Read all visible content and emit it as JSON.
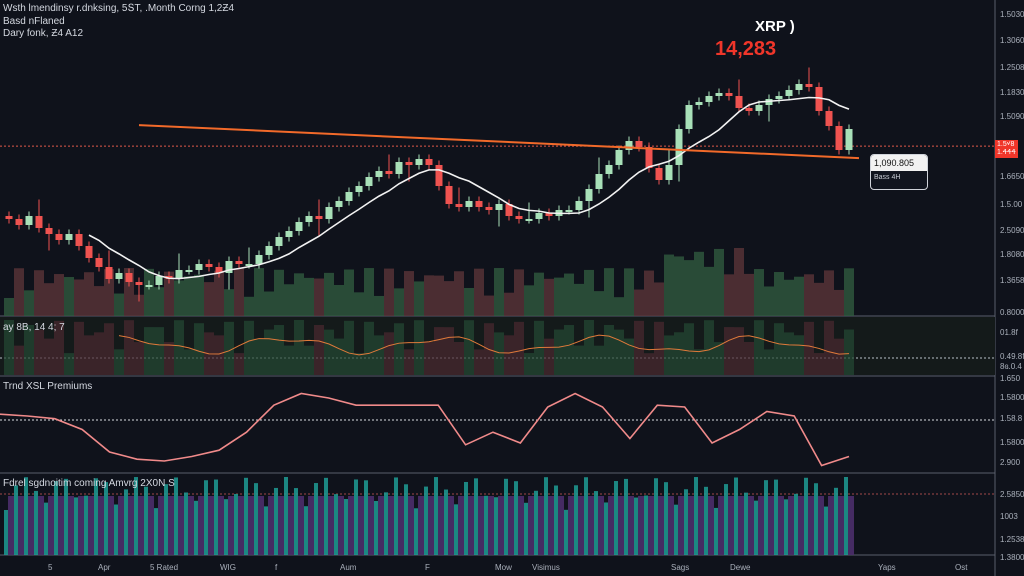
{
  "header": {
    "line1": "Wsth lmendinsy r.dnksing, 5ՏT, .Month Corng 1,2Ƶ4",
    "line2": "Basd nFlaned",
    "line3": "Dary fonk, Ƶ4 A12",
    "symbol": "XRP )",
    "price": "14,283"
  },
  "tooltip": {
    "value": "1,090.805",
    "sub": "Bass 4H"
  },
  "panels": {
    "indicator1": "ay 8B, 14 4; 7",
    "oscillator": "Trnd XSL Premiums",
    "histogram": "Fdrel sgdnoitim coming Amvrg 2X0N S"
  },
  "price_axis": [
    "1.5030",
    "1.3060",
    "1.2508",
    "1.1830",
    "1.5090",
    "1.6650",
    "1.5.00",
    "2.5090",
    "1.8080",
    "1.3658",
    "0.8000"
  ],
  "price_tag": {
    "top": "1.5ሃ8",
    "bottom": "1.ᏎᏎᏎ"
  },
  "indicator_axis": [
    "01.8f",
    "0.49.8f",
    "8ɞ.0.4"
  ],
  "osc_axis": [
    "1.650",
    "1.5800",
    "1.58.8",
    "1.5800",
    "2.900"
  ],
  "hist_axis": [
    "2.5850",
    "1003",
    "1.2538",
    "1.3800"
  ],
  "x_labels": [
    "5",
    "Apr",
    "5 Rated",
    "WIG",
    "f",
    "Aum",
    "F",
    "Mow",
    "Visimus",
    "Sags",
    "Dewe",
    "Yaps",
    "Ost"
  ],
  "colors": {
    "up": "#a8e0b8",
    "down": "#ef5350",
    "ma": "#f2f2f2",
    "trend": "#f26a2a",
    "osc": "#f08a8a",
    "teal": "#1f9c94",
    "purple": "#4b2f6b"
  },
  "chart_data": {
    "type": "candlestick",
    "closes": [
      27,
      25,
      28,
      24,
      22,
      20,
      22,
      18,
      14,
      11,
      7,
      9,
      6,
      5,
      5,
      8,
      7,
      10,
      10,
      12,
      11,
      9,
      13,
      12,
      12,
      15,
      18,
      21,
      23,
      26,
      28,
      27,
      31,
      33,
      36,
      38,
      41,
      43,
      42,
      46,
      45,
      47,
      45,
      38,
      32,
      31,
      33,
      31,
      30,
      32,
      28,
      27,
      27,
      29,
      28,
      30,
      30,
      33,
      37,
      42,
      45,
      50,
      53,
      51,
      44,
      40,
      45,
      57,
      65,
      66,
      68,
      69,
      68,
      64,
      63,
      65,
      67,
      68,
      70,
      72,
      71,
      63,
      58,
      50,
      57
    ],
    "ma_period": 8,
    "trend_line": {
      "start_index": 13,
      "start": 58.3,
      "end_index": 85,
      "end": 47.3
    },
    "reference_level": 51.3,
    "oscillator": [
      62,
      60,
      57,
      45,
      20,
      12,
      10,
      15,
      22,
      42,
      72,
      85,
      80,
      72,
      72,
      72,
      72,
      28,
      42,
      30,
      70,
      85,
      70,
      35,
      72,
      70,
      30,
      45,
      65,
      60,
      5,
      15
    ],
    "ylim": [
      0,
      100
    ]
  }
}
